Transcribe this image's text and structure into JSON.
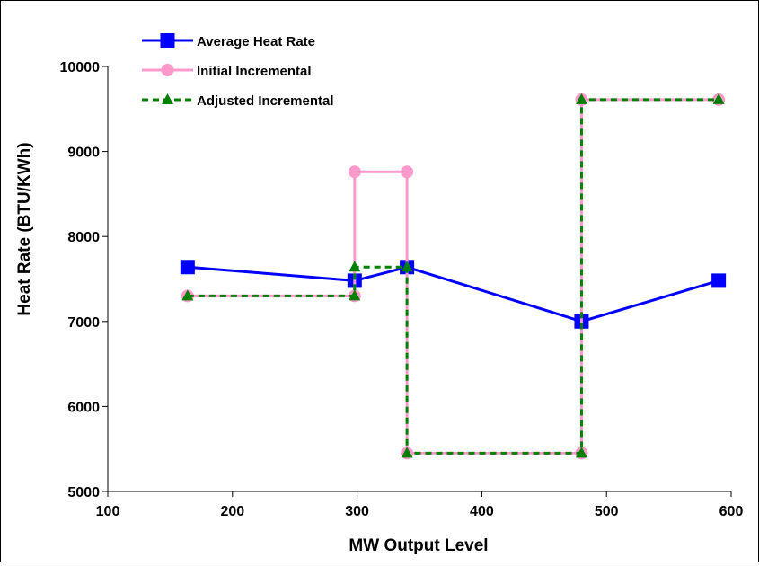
{
  "chart_data": {
    "type": "line",
    "title": "",
    "xlabel": "MW Output Level",
    "ylabel": "Heat Rate (BTU/KWh)",
    "xlim": [
      100,
      600
    ],
    "ylim": [
      5000,
      10000
    ],
    "x_ticks": [
      100,
      200,
      300,
      400,
      500,
      600
    ],
    "y_ticks": [
      5000,
      6000,
      7000,
      8000,
      9000,
      10000
    ],
    "grid": false,
    "legend_position": "top-left",
    "series": [
      {
        "name": "Average Heat Rate",
        "color": "#0000FF",
        "marker": "square",
        "line_style": "solid",
        "points": [
          [
            164,
            7640
          ],
          [
            298,
            7480
          ],
          [
            340,
            7640
          ],
          [
            480,
            7000
          ],
          [
            590,
            7480
          ]
        ]
      },
      {
        "name": "Initial Incremental",
        "color": "#FF99CC",
        "marker": "circle",
        "line_style": "solid",
        "points": [
          [
            164,
            7300
          ],
          [
            298,
            7300
          ],
          [
            298,
            8760
          ],
          [
            340,
            8760
          ],
          [
            340,
            5450
          ],
          [
            480,
            5450
          ],
          [
            480,
            9610
          ],
          [
            590,
            9610
          ]
        ],
        "marker_points": [
          [
            164,
            7300
          ],
          [
            298,
            7300
          ],
          [
            298,
            8760
          ],
          [
            340,
            8760
          ],
          [
            340,
            5450
          ],
          [
            480,
            5450
          ],
          [
            480,
            9610
          ],
          [
            590,
            9610
          ]
        ]
      },
      {
        "name": "Adjusted Incremental",
        "color": "#008000",
        "marker": "triangle",
        "line_style": "dashed",
        "points": [
          [
            164,
            7300
          ],
          [
            298,
            7300
          ],
          [
            298,
            7640
          ],
          [
            340,
            7640
          ],
          [
            340,
            5450
          ],
          [
            480,
            5450
          ],
          [
            480,
            9610
          ],
          [
            590,
            9610
          ]
        ],
        "marker_points": [
          [
            164,
            7300
          ],
          [
            298,
            7300
          ],
          [
            298,
            7640
          ],
          [
            340,
            7640
          ],
          [
            340,
            5450
          ],
          [
            480,
            5450
          ],
          [
            480,
            9610
          ],
          [
            590,
            9610
          ]
        ]
      }
    ]
  }
}
